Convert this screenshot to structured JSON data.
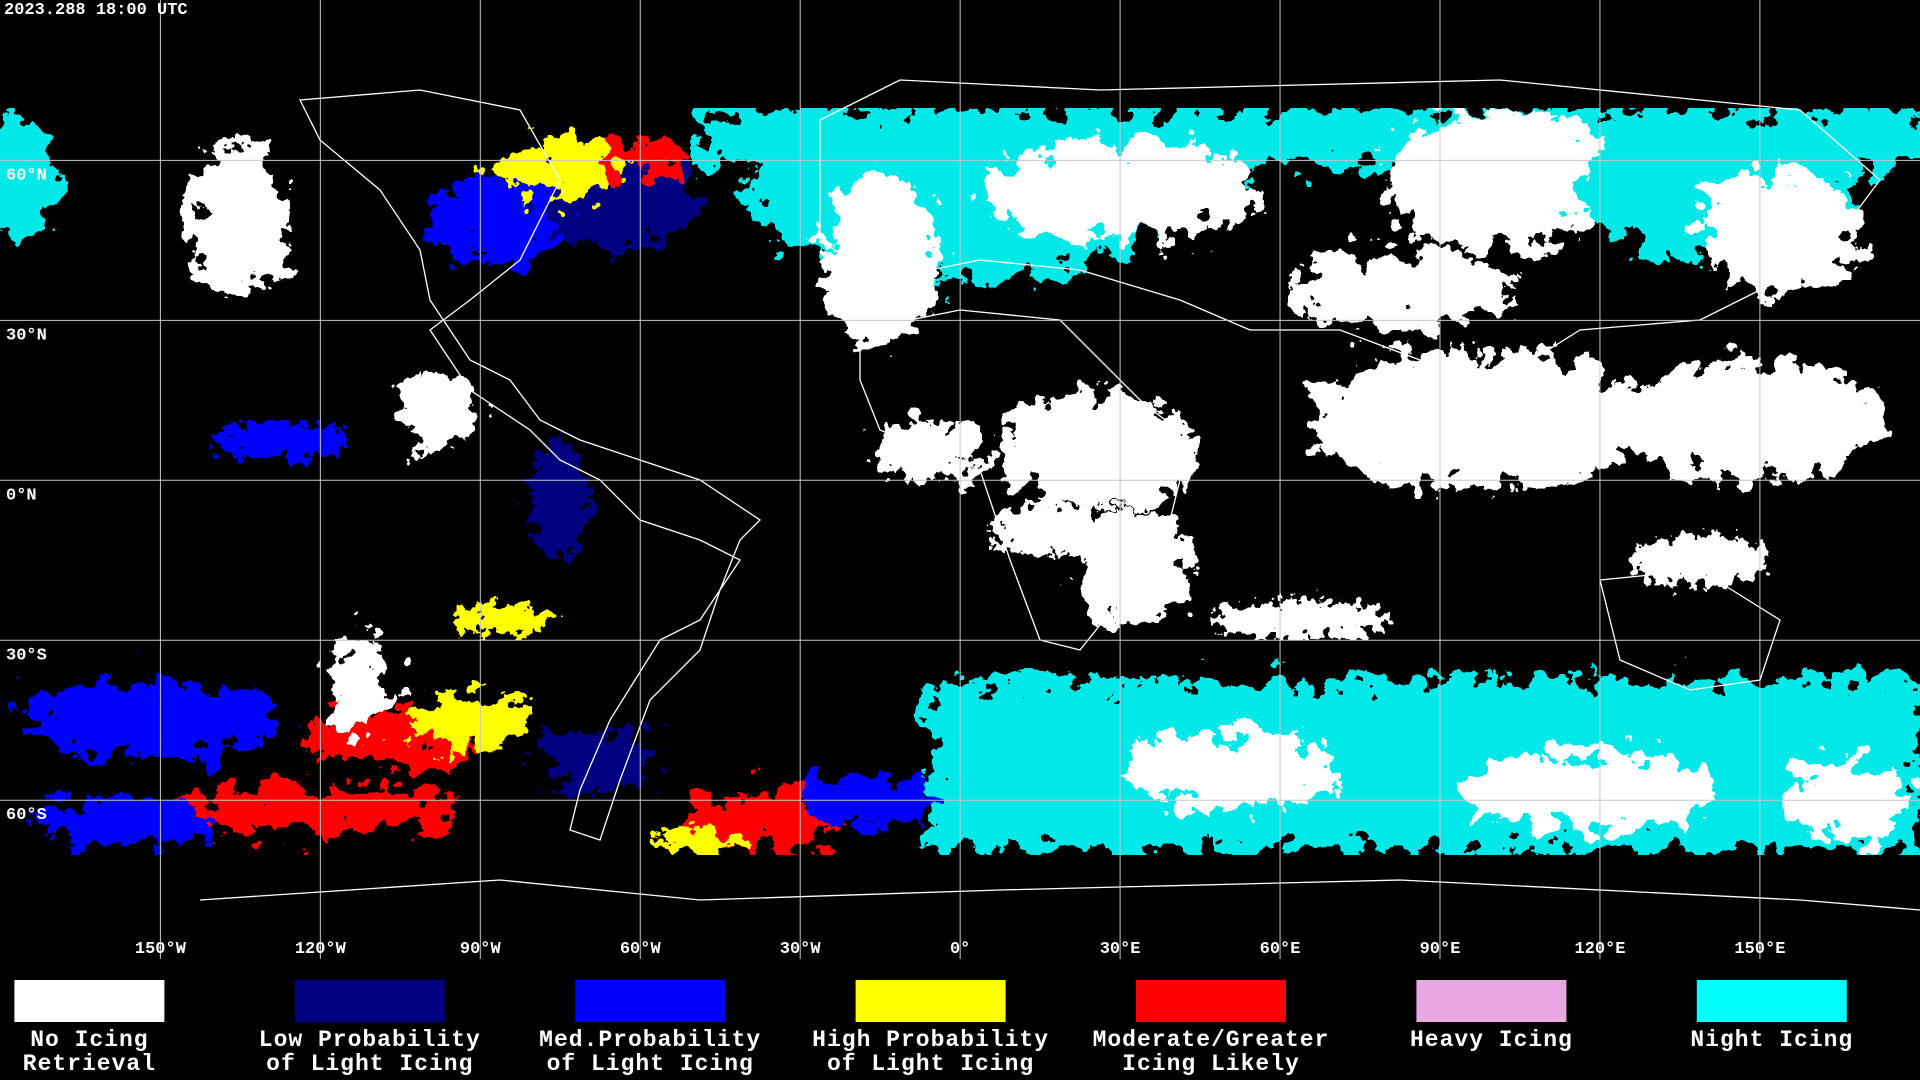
{
  "header": {
    "timestamp": "2023.288 18:00 UTC"
  },
  "map": {
    "longitude_labels": [
      "150°W",
      "120°W",
      "90°W",
      "60°W",
      "30°W",
      "0°",
      "30°E",
      "60°E",
      "90°E",
      "120°E",
      "150°E"
    ],
    "latitude_labels": [
      "60°N",
      "30°N",
      "0°N",
      "30°S",
      "60°S"
    ]
  },
  "legend": {
    "items": [
      {
        "lines": [
          "No Icing",
          "Retrieval"
        ],
        "color": "#ffffff"
      },
      {
        "lines": [
          "Low Probability",
          "of Light Icing"
        ],
        "color": "#000080"
      },
      {
        "lines": [
          "Med.Probability",
          "of Light Icing"
        ],
        "color": "#0000ff"
      },
      {
        "lines": [
          "High Probability",
          "of Light Icing"
        ],
        "color": "#ffff00"
      },
      {
        "lines": [
          "Moderate/Greater",
          "Icing Likely"
        ],
        "color": "#ff0000"
      },
      {
        "lines": [
          "Heavy Icing"
        ],
        "color": "#e8a8e0"
      },
      {
        "lines": [
          "Night Icing"
        ],
        "color": "#00ffff"
      }
    ]
  }
}
